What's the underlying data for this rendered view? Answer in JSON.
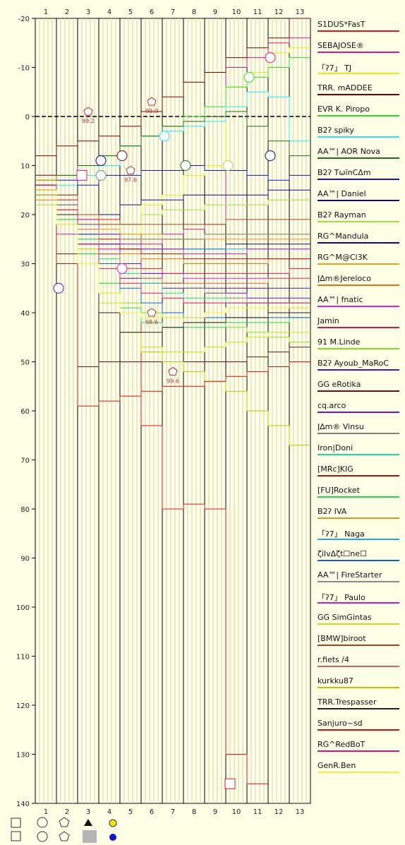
{
  "chart_data": {
    "type": "line",
    "x_ticks": [
      "1",
      "2",
      "3",
      "4",
      "5",
      "6",
      "7",
      "8",
      "9",
      "10",
      "11",
      "12",
      "13"
    ],
    "y_ticks": [
      "-20",
      "-10",
      "0",
      "10",
      "20",
      "30",
      "40",
      "50",
      "60",
      "70",
      "80",
      "90",
      "100",
      "110",
      "120",
      "130",
      "140"
    ],
    "ylim": [
      -20,
      140
    ],
    "y_inverted": true,
    "annotations": [
      "99.2",
      "99.9",
      "97.6",
      "98.6",
      "99.6"
    ],
    "series": [
      {
        "name": "S1DUS*FasT",
        "color": "#e8141c",
        "values": [
          15,
          20,
          21,
          21,
          22,
          63,
          80,
          79,
          80,
          130,
          136,
          null,
          null
        ]
      },
      {
        "name": "SEBAJOSE®",
        "color": "#e8147c",
        "values": [
          12,
          24,
          26,
          28,
          30,
          26,
          24,
          23,
          22,
          -10,
          -12,
          -15,
          -16
        ]
      },
      {
        "name": "「ʔ7」 TJ",
        "color": "#f0e418",
        "values": [
          12,
          18,
          20,
          22,
          24,
          18,
          16,
          12,
          10,
          -6,
          -9,
          -13,
          -14
        ]
      },
      {
        "name": "TRR. mADDEE",
        "color": "#7a0000",
        "values": [
          8,
          6,
          5,
          4,
          2,
          -1,
          -4,
          -7,
          -9,
          -12,
          -14,
          -16,
          -20
        ]
      },
      {
        "name": "EVR K. Piropo",
        "color": "#28e028",
        "values": [
          13,
          12,
          10,
          8,
          6,
          4,
          2,
          0,
          -2,
          -6,
          -8,
          -10,
          -12
        ]
      },
      {
        "name": "B2ʔ spiky",
        "color": "#28e8e8",
        "values": [
          15,
          14,
          12,
          10,
          6,
          4,
          3,
          2,
          1,
          -2,
          -5,
          -4,
          5
        ]
      },
      {
        "name": "AA™| AOR Nova",
        "color": "#1e6a1e",
        "values": [
          14,
          12,
          10,
          8,
          6,
          4,
          2,
          1,
          0,
          -1,
          2,
          5,
          8
        ]
      },
      {
        "name": "B2ʔ TωïnCΔm",
        "color": "#1414b4",
        "values": [
          12,
          13,
          14,
          12,
          12,
          11,
          11,
          10,
          11,
          11,
          12,
          13,
          12
        ]
      },
      {
        "name": "AA™| Daniel",
        "color": "#0a0a80",
        "values": [
          16,
          18,
          20,
          20,
          18,
          17,
          17,
          16,
          16,
          16,
          16,
          15,
          15
        ]
      },
      {
        "name": "B2ʔ Rayman",
        "color": "#a0e040",
        "values": [
          18,
          20,
          22,
          24,
          22,
          20,
          19,
          19,
          18,
          18,
          18,
          17,
          17
        ]
      },
      {
        "name": "RG^Mandula",
        "color": "#0c0c70",
        "values": [
          16,
          20,
          24,
          26,
          27,
          27,
          27,
          27,
          27,
          26,
          26,
          26,
          26
        ]
      },
      {
        "name": "RG^M@Cl3K",
        "color": "#f0a010",
        "values": [
          14,
          18,
          22,
          24,
          25,
          25,
          25,
          25,
          24,
          24,
          24,
          24,
          24
        ]
      },
      {
        "name": "ǀ∆m®Jereloco",
        "color": "#f07010",
        "values": [
          17,
          21,
          25,
          27,
          28,
          29,
          29,
          30,
          30,
          30,
          30,
          29,
          29
        ]
      },
      {
        "name": "AA™| fnatic",
        "color": "#e020e0",
        "values": [
          14,
          18,
          22,
          27,
          31,
          32,
          32,
          33,
          33,
          33,
          33,
          33,
          33
        ]
      },
      {
        "name": "Jamin",
        "color": "#d01850",
        "values": [
          15,
          19,
          24,
          28,
          30,
          31,
          32,
          32,
          32,
          32,
          32,
          32,
          31
        ]
      },
      {
        "name": "91 M.Linde",
        "color": "#80e020",
        "values": [
          16,
          22,
          28,
          34,
          38,
          40,
          41,
          42,
          42,
          43,
          44,
          45,
          46
        ]
      },
      {
        "name": "B2ʔ Ayoub_MaRoC",
        "color": "#6010a0",
        "values": [
          14,
          20,
          26,
          30,
          33,
          34,
          35,
          35,
          35,
          35,
          35,
          35,
          35
        ]
      },
      {
        "name": "GG eRotika",
        "color": "#6a1010",
        "values": [
          16,
          28,
          51,
          50,
          50,
          50,
          50,
          50,
          50,
          50,
          49,
          48,
          47
        ]
      },
      {
        "name": "cq.arco",
        "color": "#7010d0",
        "values": [
          12,
          16,
          22,
          26,
          30,
          32,
          34,
          35,
          36,
          36,
          37,
          37,
          37
        ]
      },
      {
        "name": "ǀ∆m® Vinsu",
        "color": "#808080",
        "values": [
          14,
          19,
          24,
          28,
          31,
          33,
          34,
          35,
          36,
          37,
          38,
          38,
          39
        ]
      },
      {
        "name": "Iron|Doni",
        "color": "#20d8a0",
        "values": [
          15,
          20,
          25,
          29,
          32,
          34,
          36,
          37,
          37,
          38,
          38,
          38,
          38
        ]
      },
      {
        "name": "[MRc]KIG",
        "color": "#b01010",
        "values": [
          13,
          17,
          22,
          25,
          27,
          28,
          28,
          29,
          29,
          29,
          29,
          29,
          29
        ]
      },
      {
        "name": "[FU]Rocket",
        "color": "#20d850",
        "values": [
          15,
          21,
          28,
          34,
          39,
          42,
          43,
          43,
          43,
          42,
          42,
          42,
          41
        ]
      },
      {
        "name": "B2ʔ IVA",
        "color": "#f09020",
        "values": [
          13,
          17,
          21,
          23,
          24,
          24,
          25,
          25,
          25,
          25,
          25,
          25,
          25
        ]
      },
      {
        "name": "「ʔ7」 Naga",
        "color": "#20a8e8",
        "values": [
          14,
          18,
          22,
          24,
          26,
          27,
          27,
          27,
          27,
          27,
          27,
          27,
          27
        ]
      },
      {
        "name": "ζilvΔζt☐ne☐",
        "color": "#1060d0",
        "values": [
          13,
          18,
          24,
          30,
          35,
          38,
          40,
          41,
          41,
          41,
          41,
          41,
          41
        ]
      },
      {
        "name": "AA™| FireStarter",
        "color": "#888888",
        "values": [
          14,
          18,
          22,
          24,
          25,
          25,
          25,
          25,
          24,
          24,
          24,
          24,
          24
        ]
      },
      {
        "name": "「ʔ7」 Paulo",
        "color": "#c020c0",
        "values": [
          13,
          17,
          21,
          24,
          26,
          27,
          27,
          28,
          28,
          28,
          27,
          27,
          27
        ]
      },
      {
        "name": "GG SimGintas",
        "color": "#c0e020",
        "values": [
          16,
          22,
          30,
          38,
          44,
          47,
          48,
          48,
          47,
          46,
          45,
          44,
          44
        ]
      },
      {
        "name": "[BMW]biroot",
        "color": "#b04020",
        "values": [
          12,
          16,
          20,
          22,
          22,
          22,
          22,
          22,
          22,
          21,
          21,
          21,
          21
        ]
      },
      {
        "name": "r.fiets /4",
        "color": "#d06060",
        "values": [
          13,
          17,
          23,
          28,
          31,
          33,
          34,
          34,
          34,
          34,
          34,
          33,
          33
        ]
      },
      {
        "name": "kurkku87",
        "color": "#c0c000",
        "values": [
          13,
          19,
          27,
          36,
          44,
          48,
          50,
          52,
          54,
          56,
          60,
          63,
          67
        ]
      },
      {
        "name": "TRR.Trespasser",
        "color": "#202020",
        "values": [
          14,
          20,
          30,
          40,
          44,
          44,
          43,
          42,
          42,
          41,
          41,
          40,
          40
        ]
      },
      {
        "name": "Sanjuro~sd",
        "color": "#d01010",
        "values": [
          15,
          30,
          59,
          58,
          57,
          56,
          55,
          55,
          54,
          53,
          52,
          51,
          50
        ]
      },
      {
        "name": "RG^RedBoT",
        "color": "#e01070",
        "values": [
          14,
          19,
          26,
          31,
          34,
          36,
          37,
          38,
          38,
          38,
          38,
          38,
          38
        ]
      },
      {
        "name": "GenR.Ben",
        "color": "#f0f040",
        "values": [
          15,
          22,
          30,
          36,
          40,
          41,
          41,
          41,
          40,
          39,
          39,
          39,
          39
        ]
      }
    ]
  },
  "key_row_1": {
    "square": "□",
    "circle": "○",
    "pentagon": "⬠",
    "triangle": "▲"
  },
  "key_row_2": {
    "square": "□",
    "circle": "○",
    "pentagon": "⬠"
  },
  "key_colors": {
    "yellow": "#f0e418",
    "blue": "#1414c8",
    "grey": "#b4b4b4"
  }
}
